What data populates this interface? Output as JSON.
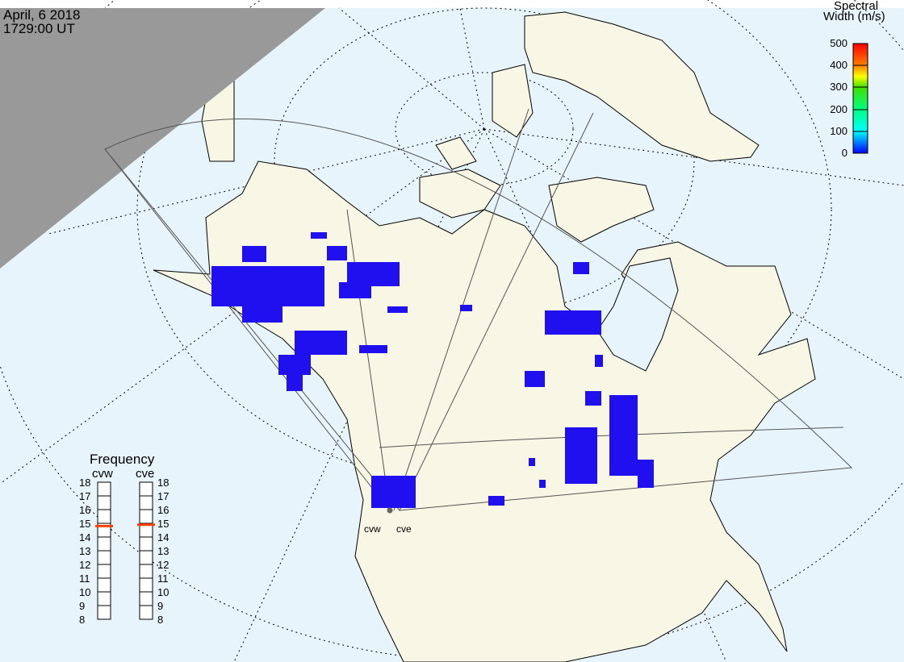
{
  "header": {
    "date": "April, 6 2018",
    "time": "1729:00 UT"
  },
  "colorbar": {
    "title_line1": "Spectral",
    "title_line2": "Width (m/s)",
    "ticks": [
      "500",
      "400",
      "300",
      "200",
      "100",
      "0"
    ],
    "range": [
      0,
      500
    ],
    "colors": [
      "#ff0000",
      "#ff8000",
      "#ffff00",
      "#00e000",
      "#00ffc0",
      "#00ffff",
      "#0080ff",
      "#0000ff"
    ]
  },
  "frequency": {
    "title": "Frequency",
    "ticks": [
      "18",
      "17",
      "16",
      "15",
      "14",
      "13",
      "12",
      "11",
      "10",
      "9",
      "8"
    ],
    "range_mhz": [
      8,
      18
    ],
    "radars": [
      {
        "name": "cvw",
        "value_mhz": 14.8
      },
      {
        "name": "cve",
        "value_mhz": 14.9
      }
    ],
    "marker_color": "#ff4000"
  },
  "radar_sites": [
    {
      "label": "cvw"
    },
    {
      "label": "cve"
    }
  ],
  "map": {
    "ocean_color": "#e8f4fc",
    "land_color": "#f8f6e4",
    "night_color": "#999999",
    "scatter_color": "#2010f0"
  }
}
